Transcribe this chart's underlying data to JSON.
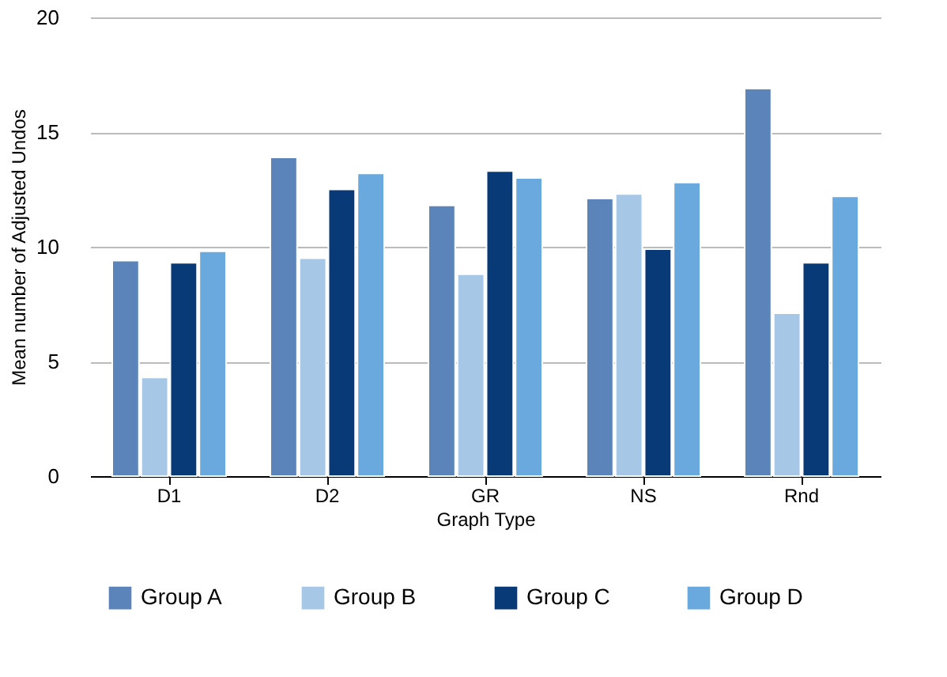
{
  "chart_data": {
    "type": "bar",
    "xlabel": "Graph Type",
    "ylabel": "Mean number of Adjusted Undos",
    "categories": [
      "D1",
      "D2",
      "GR",
      "NS",
      "Rnd"
    ],
    "series": [
      {
        "name": "Group A",
        "color": "#5b84bb",
        "values": [
          9.4,
          13.9,
          11.8,
          12.1,
          16.9
        ]
      },
      {
        "name": "Group B",
        "color": "#a7c7e6",
        "values": [
          4.3,
          9.5,
          8.8,
          12.3,
          7.1
        ]
      },
      {
        "name": "Group C",
        "color": "#083a78",
        "values": [
          9.3,
          12.5,
          13.3,
          9.9,
          9.3
        ]
      },
      {
        "name": "Group D",
        "color": "#6aa9dd",
        "values": [
          9.8,
          13.2,
          13.0,
          12.8,
          12.2
        ]
      }
    ],
    "ylim": [
      0,
      20
    ],
    "yticks": [
      0,
      5,
      10,
      15,
      20
    ],
    "grid": "y",
    "legend": "bottom"
  }
}
